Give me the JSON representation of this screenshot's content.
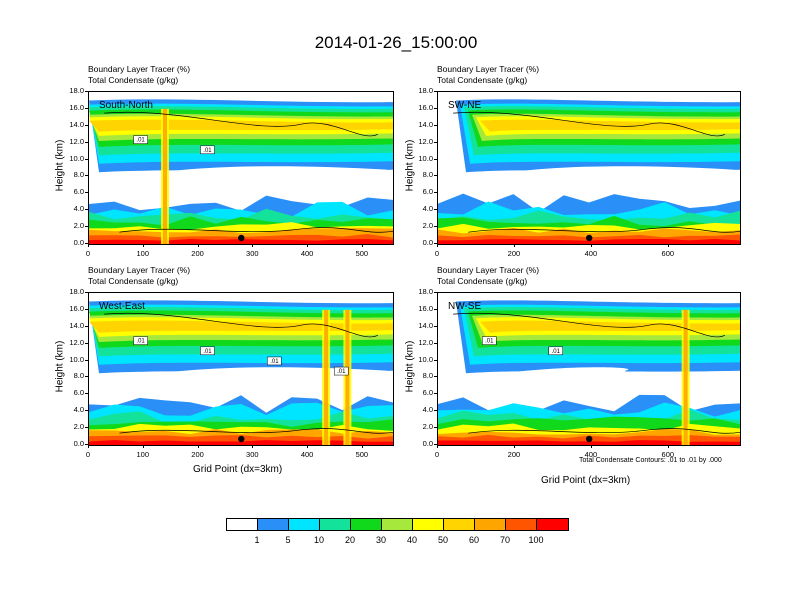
{
  "main_title": "2014-01-26_15:00:00",
  "panel_titles": {
    "line1": "Boundary Layer Tracer   (%)",
    "line2": "Total Condensate   (g/kg)"
  },
  "axis": {
    "ylabel": "Height (km)",
    "xlabel": "Grid Point (dx=3km)"
  },
  "contour_note": "Total Condensate Contours: .01 to .01 by .000",
  "colorbar": {
    "colors": [
      "#ffffff",
      "#2a8ff7",
      "#00e5ff",
      "#13e39a",
      "#10d81a",
      "#a6e83c",
      "#ffff00",
      "#ffd400",
      "#ffa500",
      "#ff5500",
      "#ff0000"
    ],
    "labels": [
      "1",
      "5",
      "10",
      "20",
      "30",
      "40",
      "50",
      "60",
      "70",
      "100"
    ]
  },
  "chart_data": [
    {
      "type": "heatmap",
      "name": "South-North",
      "label": "South-North",
      "xticks": [
        "0",
        "100",
        "200",
        "300",
        "400",
        "500"
      ],
      "xrange": [
        0,
        555
      ],
      "yticks": [
        "0.0",
        "2.0",
        "4.0",
        "6.0",
        "8.0",
        "10.0",
        "12.0",
        "14.0",
        "16.0",
        "18.0"
      ],
      "yrange": [
        0,
        18
      ],
      "contour_labels": [
        ".01",
        ".01"
      ],
      "marker_x": 278
    },
    {
      "type": "heatmap",
      "name": "SW-NE",
      "label": "SW-NE",
      "xticks": [
        "0",
        "200",
        "400",
        "600"
      ],
      "xrange": [
        0,
        785
      ],
      "yticks": [
        "0.0",
        "2.0",
        "4.0",
        "6.0",
        "8.0",
        "10.0",
        "12.0",
        "14.0",
        "16.0",
        "18.0"
      ],
      "yrange": [
        0,
        18
      ],
      "contour_labels": [],
      "marker_x": 393
    },
    {
      "type": "heatmap",
      "name": "West-East",
      "label": "West-East",
      "xticks": [
        "0",
        "100",
        "200",
        "300",
        "400",
        "500"
      ],
      "xrange": [
        0,
        555
      ],
      "yticks": [
        "0.0",
        "2.0",
        "4.0",
        "6.0",
        "8.0",
        "10.0",
        "12.0",
        "14.0",
        "16.0",
        "18.0"
      ],
      "yrange": [
        0,
        18
      ],
      "contour_labels": [
        ".01",
        ".01",
        ".01",
        ".01"
      ],
      "marker_x": 278
    },
    {
      "type": "heatmap",
      "name": "NW-SE",
      "label": "NW-SE",
      "xticks": [
        "0",
        "200",
        "400",
        "600"
      ],
      "xrange": [
        0,
        785
      ],
      "yticks": [
        "0.0",
        "2.0",
        "4.0",
        "6.0",
        "8.0",
        "10.0",
        "12.0",
        "14.0",
        "16.0",
        "18.0"
      ],
      "yrange": [
        0,
        18
      ],
      "contour_labels": [
        ".01",
        ".01"
      ],
      "marker_x": 393
    }
  ]
}
